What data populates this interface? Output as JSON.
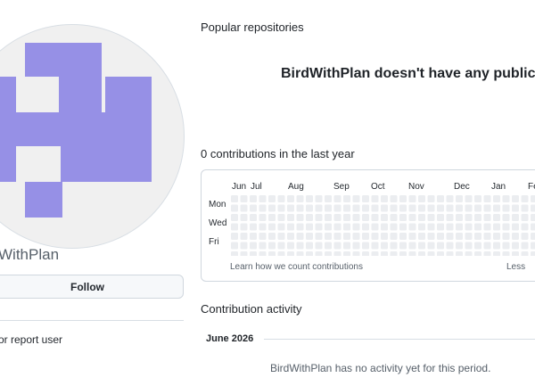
{
  "profile": {
    "username_partial": "WithPlan",
    "follow_label": "Follow",
    "report_label": "or report user",
    "avatar_color": "#9690e6"
  },
  "popular": {
    "title": "Popular repositories",
    "empty_message": "BirdWithPlan doesn't have any public re"
  },
  "contributions": {
    "title": "0 contributions in the last year",
    "months": [
      "Jun",
      "Jul",
      "Aug",
      "Sep",
      "Oct",
      "Nov",
      "Dec",
      "Jan",
      "Fe"
    ],
    "days": [
      "Mon",
      "Wed",
      "Fri"
    ],
    "learn_label": "Learn how we count contributions",
    "legend_less": "Less",
    "empty_cell_color": "#ebedf0"
  },
  "activity": {
    "title": "Contribution activity",
    "period": "June 2026",
    "empty_message": "BirdWithPlan has no activity yet for this period."
  }
}
